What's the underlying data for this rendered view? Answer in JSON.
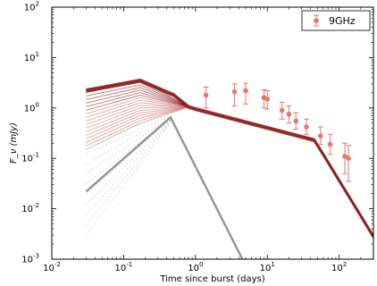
{
  "chart_data": {
    "type": "scatter",
    "xlabel": "Time since burst (days)",
    "ylabel": "F_ν (mJy)",
    "x_scale": "log",
    "y_scale": "log",
    "xlim": [
      0.01,
      300
    ],
    "ylim": [
      0.001,
      100
    ],
    "x_ticks": [
      0.01,
      0.1,
      1,
      10,
      100
    ],
    "x_tick_labels": [
      "10",
      "10",
      "10",
      "10",
      "10"
    ],
    "x_tick_exponents": [
      "-2",
      "-1",
      "0",
      "1",
      "2"
    ],
    "y_ticks": [
      0.001,
      0.01,
      0.1,
      1,
      10,
      100
    ],
    "y_tick_labels": [
      "10",
      "10",
      "10",
      "10",
      "10",
      "10"
    ],
    "y_tick_exponents": [
      "-3",
      "-2",
      "-1",
      "0",
      "1",
      "2"
    ],
    "legend": {
      "placement": "top-right",
      "entries": [
        "9GHz"
      ]
    },
    "colors": {
      "data": "#e8766a",
      "model": "#8b1a1a",
      "model_light": "#c96a6a",
      "component": "#888888"
    },
    "series": [
      {
        "name": "9GHz",
        "kind": "errorbar",
        "x": [
          1.4,
          3.5,
          5.0,
          9.0,
          10.0,
          16.0,
          20.0,
          25.0,
          35.0,
          55.0,
          75.0,
          120.0,
          135.0
        ],
        "y": [
          1.8,
          2.1,
          2.2,
          1.6,
          1.5,
          0.9,
          0.75,
          0.55,
          0.42,
          0.28,
          0.19,
          0.11,
          0.1
        ],
        "y_low": [
          1.0,
          1.1,
          1.2,
          1.0,
          0.95,
          0.6,
          0.5,
          0.38,
          0.3,
          0.19,
          0.12,
          0.05,
          0.035
        ],
        "y_high": [
          2.6,
          3.0,
          3.1,
          2.3,
          2.2,
          1.3,
          1.1,
          0.8,
          0.6,
          0.42,
          0.3,
          0.2,
          0.18
        ]
      }
    ],
    "model_total": {
      "x": [
        0.03,
        0.17,
        0.5,
        0.8,
        1.0,
        45.0,
        60.0,
        300.0
      ],
      "y": [
        2.2,
        3.5,
        1.8,
        1.05,
        0.95,
        0.23,
        0.12,
        0.0028
      ]
    },
    "model_early_spread": {
      "x": [
        0.03,
        0.17
      ],
      "y_low": [
        0.15,
        0.5
      ],
      "y_high": [
        2.4,
        3.6
      ]
    },
    "model_component": {
      "x": [
        0.03,
        0.45,
        4.5
      ],
      "y": [
        0.022,
        0.65,
        0.001
      ]
    },
    "model_component_spread": {
      "x": [
        0.03,
        0.45
      ],
      "y_low": [
        0.003,
        0.5
      ],
      "y_high": [
        0.2,
        0.75
      ]
    }
  }
}
